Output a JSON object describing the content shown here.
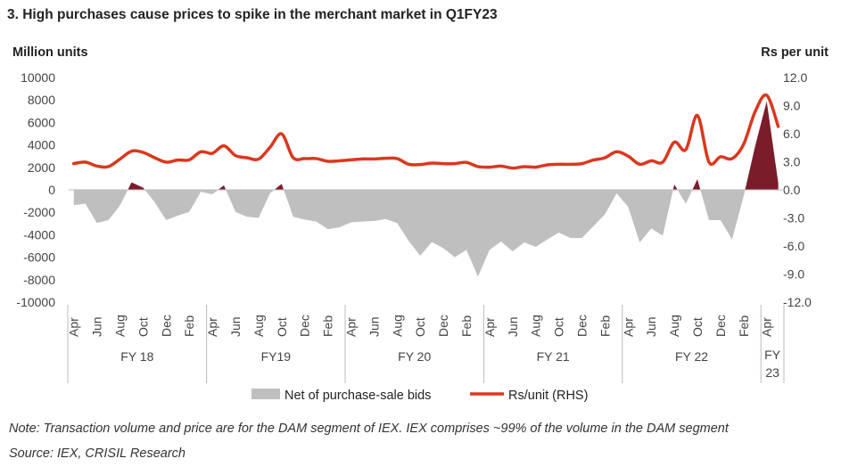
{
  "title": "3.   High purchases cause prices to spike in the merchant market in Q1FY23",
  "note": "Note: Transaction volume and price are for the DAM segment of IEX. IEX comprises ~99% of the volume in the DAM segment",
  "source": "Source: IEX, CRISIL Research",
  "chart_data": {
    "type": "area+line",
    "ylabel": "Million units",
    "y2label": "Rs per unit",
    "ylim": [
      -10000,
      10000
    ],
    "y2lim": [
      -12,
      12
    ],
    "yticks": [
      "10000",
      "8000",
      "6000",
      "4000",
      "2000",
      "0",
      "-2000",
      "-4000",
      "-6000",
      "-8000",
      "-10000"
    ],
    "y2ticks": [
      "12.0",
      "9.0",
      "6.0",
      "3.0",
      "0.0",
      "-3.0",
      "-6.0",
      "-9.0",
      "-12.0"
    ],
    "month_labels": [
      "Apr",
      "Jun",
      "Aug",
      "Oct",
      "Dec",
      "Feb",
      "Apr",
      "Jun",
      "Aug",
      "Oct",
      "Dec",
      "Feb",
      "Apr",
      "Jun",
      "Aug",
      "Oct",
      "Dec",
      "Feb",
      "Apr",
      "Jun",
      "Aug",
      "Oct",
      "Dec",
      "Feb",
      "Apr",
      "Jun",
      "Aug",
      "Oct",
      "Dec",
      "Feb",
      "Apr"
    ],
    "fiscal_years": [
      "FY 18",
      "FY19",
      "FY 20",
      "FY 21",
      "FY 22",
      "FY\n23"
    ],
    "legend": [
      "Net of purchase-sale bids",
      "Rs/unit (RHS)"
    ],
    "legend_position": "bottom",
    "colors": {
      "net_negative": "#bfbfbf",
      "net_positive": "#7b1c2a",
      "price": "#d9381e"
    },
    "series": [
      {
        "name": "Net of purchase-sale bids",
        "axis": "left",
        "values": [
          -1370,
          -1230,
          -2960,
          -2700,
          -1400,
          660,
          200,
          -1100,
          -2700,
          -2300,
          -1960,
          -180,
          -400,
          400,
          -1960,
          -2400,
          -2500,
          -300,
          530,
          -2400,
          -2650,
          -2830,
          -3500,
          -3340,
          -2900,
          -2830,
          -2780,
          -2600,
          -2960,
          -4550,
          -5870,
          -4650,
          -5200,
          -6000,
          -5350,
          -7730,
          -5350,
          -4600,
          -5480,
          -4680,
          -5080,
          -4420,
          -3810,
          -4290,
          -4290,
          -3230,
          -2170,
          -320,
          -1510,
          -4680,
          -3440,
          -4080,
          480,
          -1240,
          950,
          -2700,
          -2700,
          -4420,
          -580,
          3900,
          7890,
          600
        ]
      },
      {
        "name": "Rs/unit (RHS)",
        "axis": "right",
        "values": [
          2.8,
          2.96,
          2.54,
          2.48,
          3.28,
          4.13,
          4.0,
          3.43,
          2.96,
          3.18,
          3.2,
          4.07,
          3.9,
          4.7,
          3.66,
          3.43,
          3.28,
          4.55,
          5.98,
          3.43,
          3.34,
          3.34,
          3.05,
          3.1,
          3.2,
          3.3,
          3.3,
          3.37,
          3.34,
          2.73,
          2.7,
          2.86,
          2.8,
          2.8,
          2.93,
          2.48,
          2.42,
          2.54,
          2.32,
          2.48,
          2.42,
          2.67,
          2.73,
          2.73,
          2.8,
          3.18,
          3.43,
          4.07,
          3.6,
          2.73,
          3.1,
          2.96,
          5.09,
          4.3,
          7.95,
          2.96,
          3.53,
          3.34,
          4.87,
          8.36,
          10.1,
          6.77
        ]
      }
    ]
  }
}
